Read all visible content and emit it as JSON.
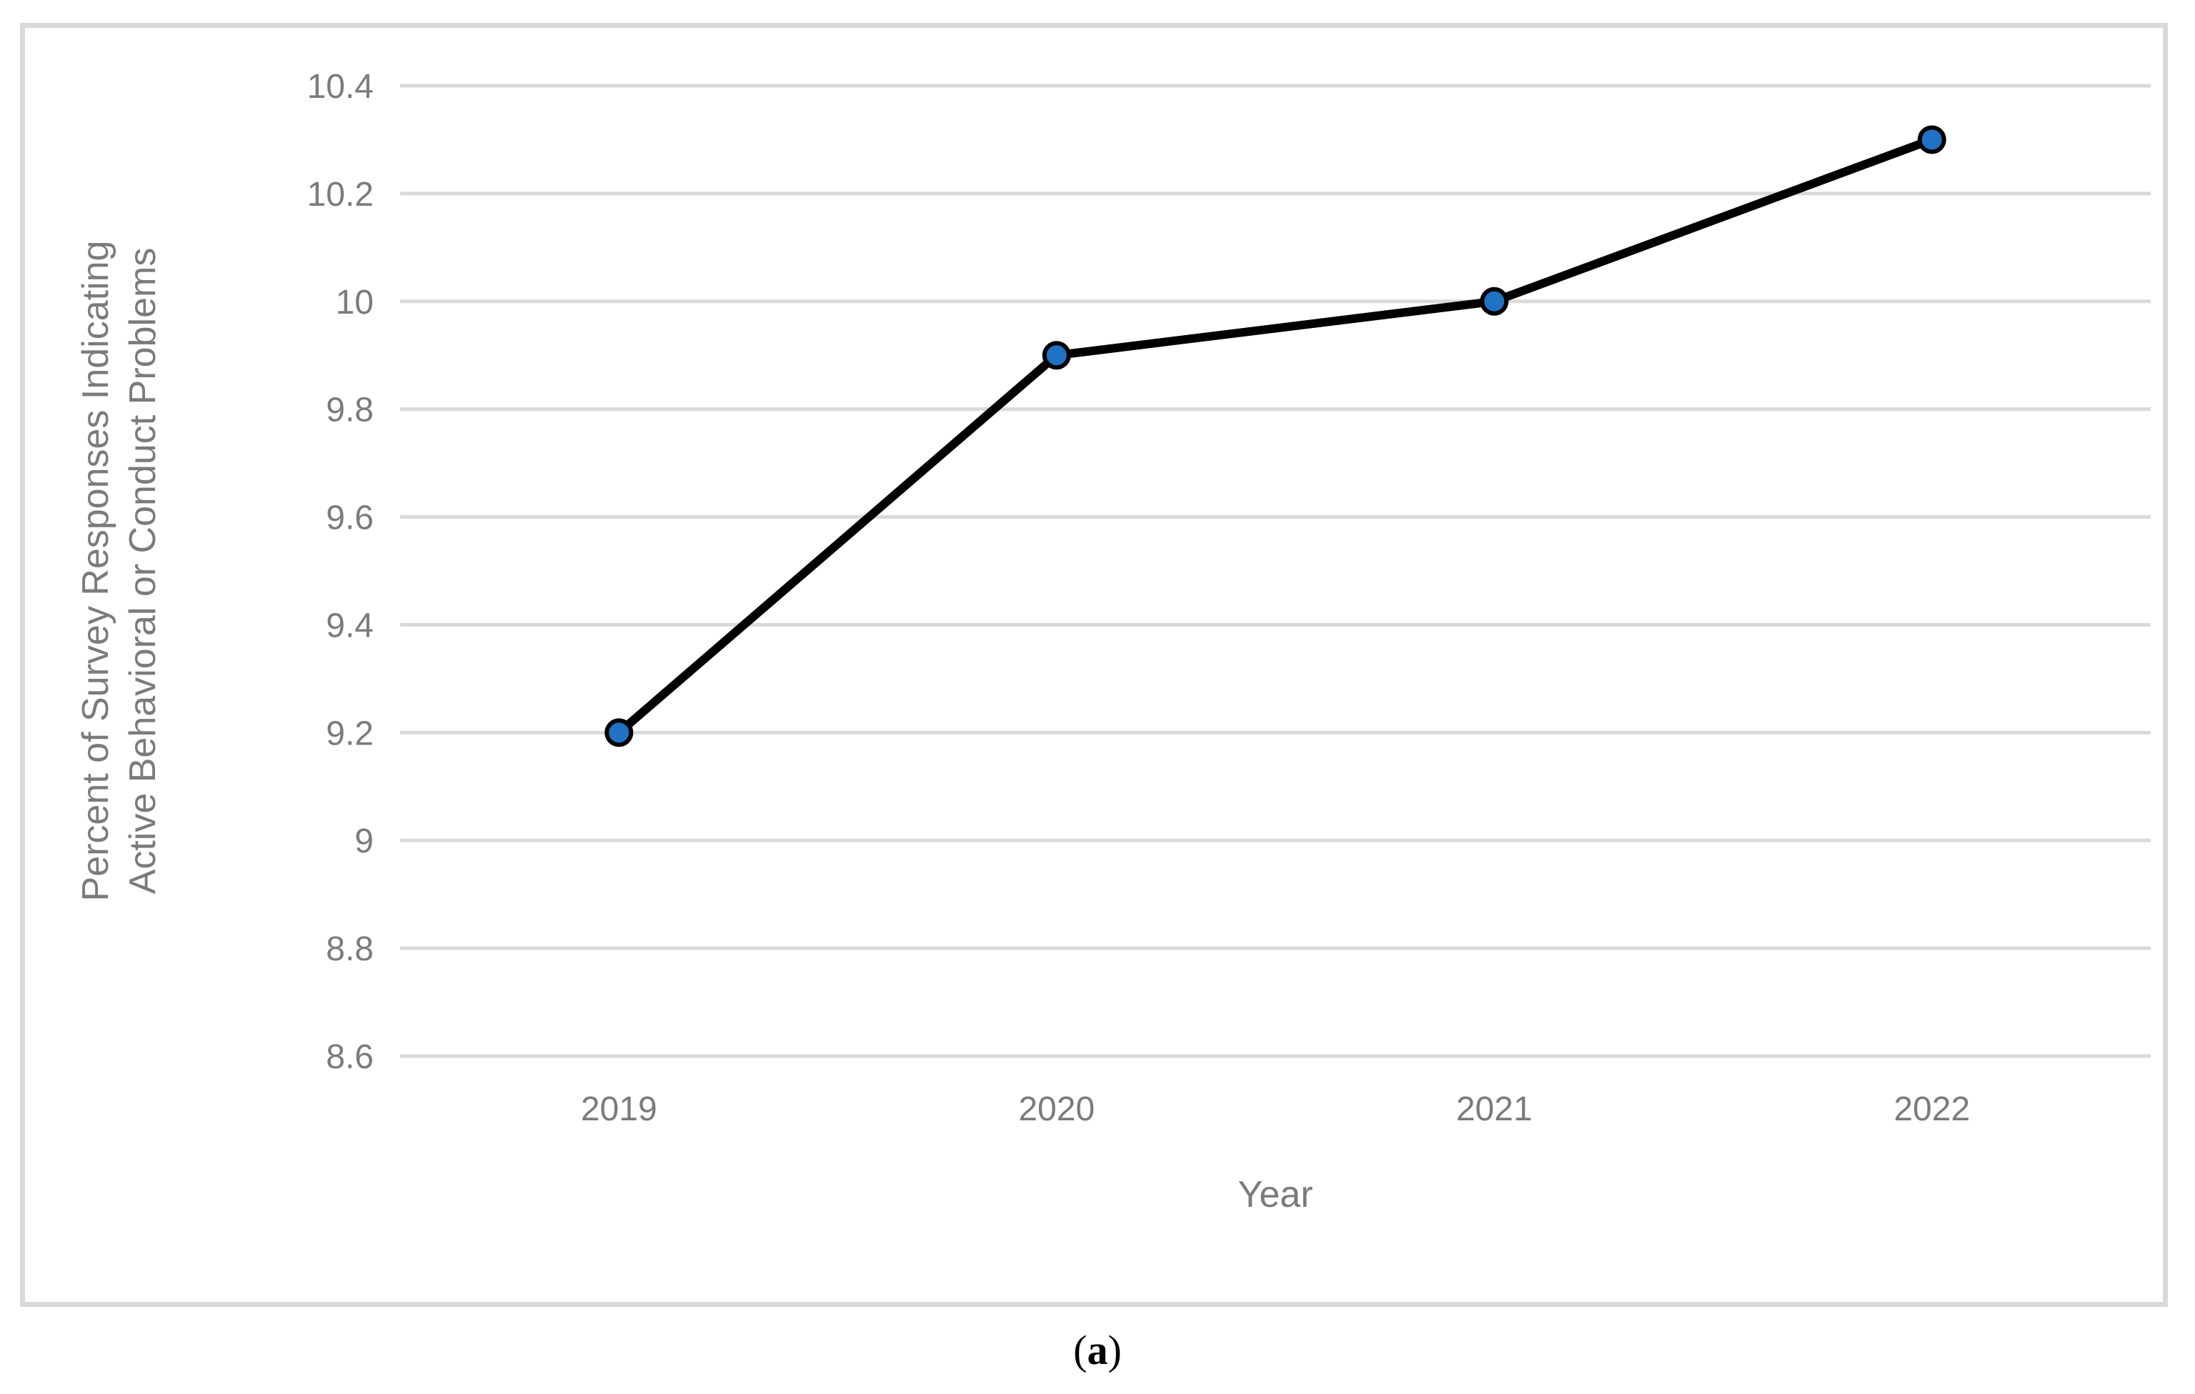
{
  "caption": {
    "prefix": "(",
    "letter": "a",
    "suffix": ")"
  },
  "chart_data": {
    "type": "line",
    "categories": [
      "2019",
      "2020",
      "2021",
      "2022"
    ],
    "values": [
      9.2,
      9.9,
      10.0,
      10.3
    ],
    "title": "",
    "xlabel": "Year",
    "ylabel": "Percent of Survey Responses Indicating Active Behavioral or Conduct Problems",
    "ylabel_lines": {
      "line1": "Percent of Survey Responses Indicating",
      "line2": "Active Behavioral or Conduct Problems"
    },
    "ylim": [
      8.6,
      10.4
    ],
    "ytick_step": 0.2,
    "ytick_labels": [
      "8.6",
      "8.8",
      "9",
      "9.2",
      "9.4",
      "9.6",
      "9.8",
      "10",
      "10.2",
      "10.4"
    ],
    "grid": true,
    "legend": "none",
    "colors": {
      "line": "#000000",
      "marker_fill": "#2072C4",
      "marker_outline": "#000000",
      "gridline": "#D9D9D9",
      "axis_text": "#7B7B7B",
      "frame_border": "#D9D9D9"
    }
  }
}
